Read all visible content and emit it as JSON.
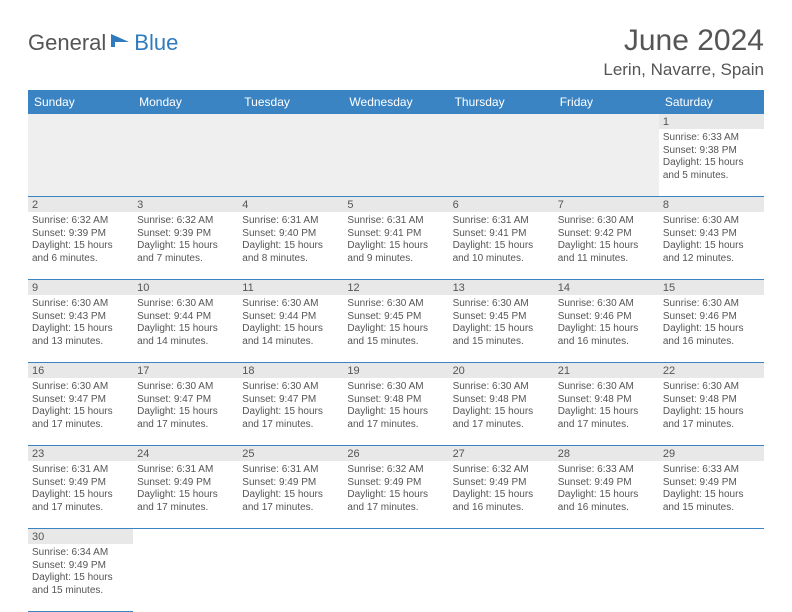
{
  "logo": {
    "part1": "General",
    "part2": "Blue"
  },
  "title": "June 2024",
  "location": "Lerin, Navarre, Spain",
  "colors": {
    "header_bg": "#3b84c4",
    "header_text": "#ffffff",
    "daynum_bg": "#e8e8e8",
    "border": "#3b84c4",
    "text": "#555555",
    "logo_blue": "#2f7bbf"
  },
  "day_names": [
    "Sunday",
    "Monday",
    "Tuesday",
    "Wednesday",
    "Thursday",
    "Friday",
    "Saturday"
  ],
  "weeks": [
    [
      null,
      null,
      null,
      null,
      null,
      null,
      {
        "n": "1",
        "sunrise": "Sunrise: 6:33 AM",
        "sunset": "Sunset: 9:38 PM",
        "daylight": "Daylight: 15 hours and 5 minutes."
      }
    ],
    [
      {
        "n": "2",
        "sunrise": "Sunrise: 6:32 AM",
        "sunset": "Sunset: 9:39 PM",
        "daylight": "Daylight: 15 hours and 6 minutes."
      },
      {
        "n": "3",
        "sunrise": "Sunrise: 6:32 AM",
        "sunset": "Sunset: 9:39 PM",
        "daylight": "Daylight: 15 hours and 7 minutes."
      },
      {
        "n": "4",
        "sunrise": "Sunrise: 6:31 AM",
        "sunset": "Sunset: 9:40 PM",
        "daylight": "Daylight: 15 hours and 8 minutes."
      },
      {
        "n": "5",
        "sunrise": "Sunrise: 6:31 AM",
        "sunset": "Sunset: 9:41 PM",
        "daylight": "Daylight: 15 hours and 9 minutes."
      },
      {
        "n": "6",
        "sunrise": "Sunrise: 6:31 AM",
        "sunset": "Sunset: 9:41 PM",
        "daylight": "Daylight: 15 hours and 10 minutes."
      },
      {
        "n": "7",
        "sunrise": "Sunrise: 6:30 AM",
        "sunset": "Sunset: 9:42 PM",
        "daylight": "Daylight: 15 hours and 11 minutes."
      },
      {
        "n": "8",
        "sunrise": "Sunrise: 6:30 AM",
        "sunset": "Sunset: 9:43 PM",
        "daylight": "Daylight: 15 hours and 12 minutes."
      }
    ],
    [
      {
        "n": "9",
        "sunrise": "Sunrise: 6:30 AM",
        "sunset": "Sunset: 9:43 PM",
        "daylight": "Daylight: 15 hours and 13 minutes."
      },
      {
        "n": "10",
        "sunrise": "Sunrise: 6:30 AM",
        "sunset": "Sunset: 9:44 PM",
        "daylight": "Daylight: 15 hours and 14 minutes."
      },
      {
        "n": "11",
        "sunrise": "Sunrise: 6:30 AM",
        "sunset": "Sunset: 9:44 PM",
        "daylight": "Daylight: 15 hours and 14 minutes."
      },
      {
        "n": "12",
        "sunrise": "Sunrise: 6:30 AM",
        "sunset": "Sunset: 9:45 PM",
        "daylight": "Daylight: 15 hours and 15 minutes."
      },
      {
        "n": "13",
        "sunrise": "Sunrise: 6:30 AM",
        "sunset": "Sunset: 9:45 PM",
        "daylight": "Daylight: 15 hours and 15 minutes."
      },
      {
        "n": "14",
        "sunrise": "Sunrise: 6:30 AM",
        "sunset": "Sunset: 9:46 PM",
        "daylight": "Daylight: 15 hours and 16 minutes."
      },
      {
        "n": "15",
        "sunrise": "Sunrise: 6:30 AM",
        "sunset": "Sunset: 9:46 PM",
        "daylight": "Daylight: 15 hours and 16 minutes."
      }
    ],
    [
      {
        "n": "16",
        "sunrise": "Sunrise: 6:30 AM",
        "sunset": "Sunset: 9:47 PM",
        "daylight": "Daylight: 15 hours and 17 minutes."
      },
      {
        "n": "17",
        "sunrise": "Sunrise: 6:30 AM",
        "sunset": "Sunset: 9:47 PM",
        "daylight": "Daylight: 15 hours and 17 minutes."
      },
      {
        "n": "18",
        "sunrise": "Sunrise: 6:30 AM",
        "sunset": "Sunset: 9:47 PM",
        "daylight": "Daylight: 15 hours and 17 minutes."
      },
      {
        "n": "19",
        "sunrise": "Sunrise: 6:30 AM",
        "sunset": "Sunset: 9:48 PM",
        "daylight": "Daylight: 15 hours and 17 minutes."
      },
      {
        "n": "20",
        "sunrise": "Sunrise: 6:30 AM",
        "sunset": "Sunset: 9:48 PM",
        "daylight": "Daylight: 15 hours and 17 minutes."
      },
      {
        "n": "21",
        "sunrise": "Sunrise: 6:30 AM",
        "sunset": "Sunset: 9:48 PM",
        "daylight": "Daylight: 15 hours and 17 minutes."
      },
      {
        "n": "22",
        "sunrise": "Sunrise: 6:30 AM",
        "sunset": "Sunset: 9:48 PM",
        "daylight": "Daylight: 15 hours and 17 minutes."
      }
    ],
    [
      {
        "n": "23",
        "sunrise": "Sunrise: 6:31 AM",
        "sunset": "Sunset: 9:49 PM",
        "daylight": "Daylight: 15 hours and 17 minutes."
      },
      {
        "n": "24",
        "sunrise": "Sunrise: 6:31 AM",
        "sunset": "Sunset: 9:49 PM",
        "daylight": "Daylight: 15 hours and 17 minutes."
      },
      {
        "n": "25",
        "sunrise": "Sunrise: 6:31 AM",
        "sunset": "Sunset: 9:49 PM",
        "daylight": "Daylight: 15 hours and 17 minutes."
      },
      {
        "n": "26",
        "sunrise": "Sunrise: 6:32 AM",
        "sunset": "Sunset: 9:49 PM",
        "daylight": "Daylight: 15 hours and 17 minutes."
      },
      {
        "n": "27",
        "sunrise": "Sunrise: 6:32 AM",
        "sunset": "Sunset: 9:49 PM",
        "daylight": "Daylight: 15 hours and 16 minutes."
      },
      {
        "n": "28",
        "sunrise": "Sunrise: 6:33 AM",
        "sunset": "Sunset: 9:49 PM",
        "daylight": "Daylight: 15 hours and 16 minutes."
      },
      {
        "n": "29",
        "sunrise": "Sunrise: 6:33 AM",
        "sunset": "Sunset: 9:49 PM",
        "daylight": "Daylight: 15 hours and 15 minutes."
      }
    ],
    [
      {
        "n": "30",
        "sunrise": "Sunrise: 6:34 AM",
        "sunset": "Sunset: 9:49 PM",
        "daylight": "Daylight: 15 hours and 15 minutes."
      },
      null,
      null,
      null,
      null,
      null,
      null
    ]
  ]
}
